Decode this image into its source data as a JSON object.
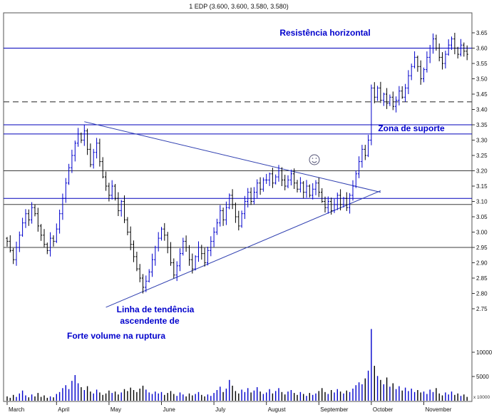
{
  "colors": {
    "up_bar": "#0000cc",
    "down_bar": "#000000",
    "line_blue": "#0000bb",
    "line_dark": "#3c3c3c",
    "trend": "#2f3fb0",
    "annotation": "#0000cc",
    "axis_text": "#111111",
    "frame": "#555555"
  },
  "annotations": {
    "resistance": "Resistência horizontal",
    "support_zone": "Zona de suporte",
    "trendline_line1": "Linha de tendência",
    "trendline_line2": "ascendente de",
    "volume_breakout": "Forte volume na ruptura",
    "smiley": "smiley-face"
  },
  "chart_data": {
    "type": "candlestick",
    "style": "ohlc-bars",
    "panels": [
      "price",
      "volume"
    ],
    "title": "1 EDP (3.600, 3.600, 3.580, 3.580)",
    "last_bar": {
      "open": 3.6,
      "high": 3.6,
      "low": 3.58,
      "close": 3.58
    },
    "ylim": [
      2.72,
      3.68
    ],
    "y_axis_labels": [
      "3.65",
      "3.60",
      "3.55",
      "3.50",
      "3.45",
      "3.40",
      "3.35",
      "3.30",
      "3.25",
      "3.20",
      "3.15",
      "3.10",
      "3.05",
      "3.00",
      "2.95",
      "2.90",
      "2.85",
      "2.80",
      "2.75"
    ],
    "volume_axis": [
      {
        "value": 10000,
        "label": "10000"
      },
      {
        "value": 5000,
        "label": "5000"
      }
    ],
    "volume_scale_label": "x 10000",
    "months": [
      {
        "label": "March",
        "start_bar": 0
      },
      {
        "label": "April",
        "start_bar": 16
      },
      {
        "label": "May",
        "start_bar": 33
      },
      {
        "label": "June",
        "start_bar": 50
      },
      {
        "label": "July",
        "start_bar": 67
      },
      {
        "label": "August",
        "start_bar": 84
      },
      {
        "label": "September",
        "start_bar": 101
      },
      {
        "label": "October",
        "start_bar": 118
      },
      {
        "label": "November",
        "start_bar": 135
      }
    ],
    "horizontal_lines": [
      {
        "price": 3.6,
        "color": "blue",
        "style": "solid",
        "meaning": "horizontal resistance"
      },
      {
        "price": 3.425,
        "color": "dark",
        "style": "dashed"
      },
      {
        "price": 3.35,
        "color": "blue",
        "style": "solid",
        "meaning": "support zone top"
      },
      {
        "price": 3.32,
        "color": "blue",
        "style": "solid",
        "meaning": "support zone bottom"
      },
      {
        "price": 3.2,
        "color": "dark",
        "style": "solid"
      },
      {
        "price": 3.11,
        "color": "blue",
        "style": "solid"
      },
      {
        "price": 3.09,
        "color": "dark",
        "style": "solid"
      },
      {
        "price": 2.95,
        "color": "dark",
        "style": "solid"
      }
    ],
    "trend_lines": [
      {
        "name": "descending-resistance",
        "from_bar": 25,
        "from_price": 3.36,
        "to_bar": 121,
        "to_price": 3.13
      },
      {
        "name": "ascending-support",
        "from_bar": 32,
        "from_price": 2.755,
        "to_bar": 121,
        "to_price": 3.135
      }
    ],
    "smiley_position": {
      "bar": 100,
      "price": 3.24
    },
    "bars": {
      "closes": [
        2.97,
        2.94,
        2.91,
        2.95,
        2.99,
        3.03,
        3.06,
        3.04,
        3.08,
        3.06,
        3.02,
        2.99,
        2.96,
        2.94,
        2.98,
        2.97,
        3.01,
        3.06,
        3.11,
        3.16,
        3.21,
        3.25,
        3.29,
        3.32,
        3.3,
        3.33,
        3.27,
        3.22,
        3.26,
        3.29,
        3.23,
        3.18,
        3.15,
        3.12,
        3.15,
        3.11,
        3.07,
        3.1,
        3.04,
        3.0,
        2.96,
        2.92,
        2.88,
        2.85,
        2.82,
        2.84,
        2.87,
        2.91,
        2.95,
        2.98,
        3.01,
        2.99,
        2.95,
        2.9,
        2.86,
        2.89,
        2.93,
        2.97,
        2.95,
        2.91,
        2.88,
        2.92,
        2.95,
        2.93,
        2.9,
        2.94,
        2.97,
        3.0,
        3.03,
        3.07,
        3.04,
        3.08,
        3.12,
        3.09,
        3.05,
        3.02,
        3.06,
        3.1,
        3.13,
        3.1,
        3.13,
        3.16,
        3.14,
        3.17,
        3.17,
        3.19,
        3.16,
        3.18,
        3.2,
        3.17,
        3.15,
        3.17,
        3.19,
        3.16,
        3.14,
        3.16,
        3.13,
        3.15,
        3.12,
        3.14,
        3.16,
        3.13,
        3.1,
        3.08,
        3.1,
        3.07,
        3.09,
        3.12,
        3.09,
        3.11,
        3.08,
        3.12,
        3.15,
        3.19,
        3.23,
        3.27,
        3.25,
        3.3,
        3.47,
        3.44,
        3.47,
        3.43,
        3.45,
        3.42,
        3.44,
        3.41,
        3.43,
        3.46,
        3.44,
        3.47,
        3.51,
        3.54,
        3.57,
        3.54,
        3.5,
        3.53,
        3.57,
        3.6,
        3.63,
        3.6,
        3.57,
        3.55,
        3.58,
        3.61,
        3.63,
        3.6,
        3.58,
        3.61,
        3.59,
        3.58
      ],
      "volumes": [
        900,
        600,
        1200,
        800,
        1500,
        2100,
        1100,
        700,
        1300,
        900,
        1600,
        800,
        1100,
        600,
        900,
        700,
        1400,
        1800,
        2600,
        3200,
        2400,
        4100,
        5300,
        3600,
        2800,
        2200,
        3000,
        1900,
        1500,
        2300,
        1700,
        1200,
        1500,
        2100,
        1600,
        1900,
        1300,
        1700,
        2400,
        2000,
        2700,
        2200,
        1800,
        2500,
        3100,
        2300,
        1700,
        1400,
        1900,
        1500,
        1800,
        1200,
        1600,
        2000,
        1400,
        1000,
        1700,
        1300,
        900,
        1500,
        1100,
        1400,
        1800,
        1200,
        900,
        1300,
        1000,
        1600,
        2200,
        2900,
        1800,
        2500,
        4300,
        3100,
        2000,
        1500,
        2300,
        1800,
        2600,
        1700,
        2100,
        2800,
        1900,
        1400,
        1700,
        2400,
        1500,
        2000,
        2600,
        1800,
        1300,
        1900,
        2200,
        1600,
        1200,
        1800,
        1400,
        1000,
        1600,
        1200,
        1500,
        2000,
        2600,
        1800,
        1400,
        2200,
        1700,
        2400,
        1900,
        1500,
        2100,
        1800,
        2500,
        3200,
        3800,
        3400,
        4600,
        6200,
        14800,
        7200,
        5100,
        4300,
        3400,
        4800,
        2900,
        3600,
        2400,
        3000,
        2100,
        2700,
        2000,
        2500,
        1800,
        2200,
        1700,
        1900,
        1400,
        2300,
        1800,
        2600,
        1500,
        1100,
        1700,
        1300,
        1900,
        1200,
        1500,
        1000,
        1300,
        800
      ]
    }
  }
}
